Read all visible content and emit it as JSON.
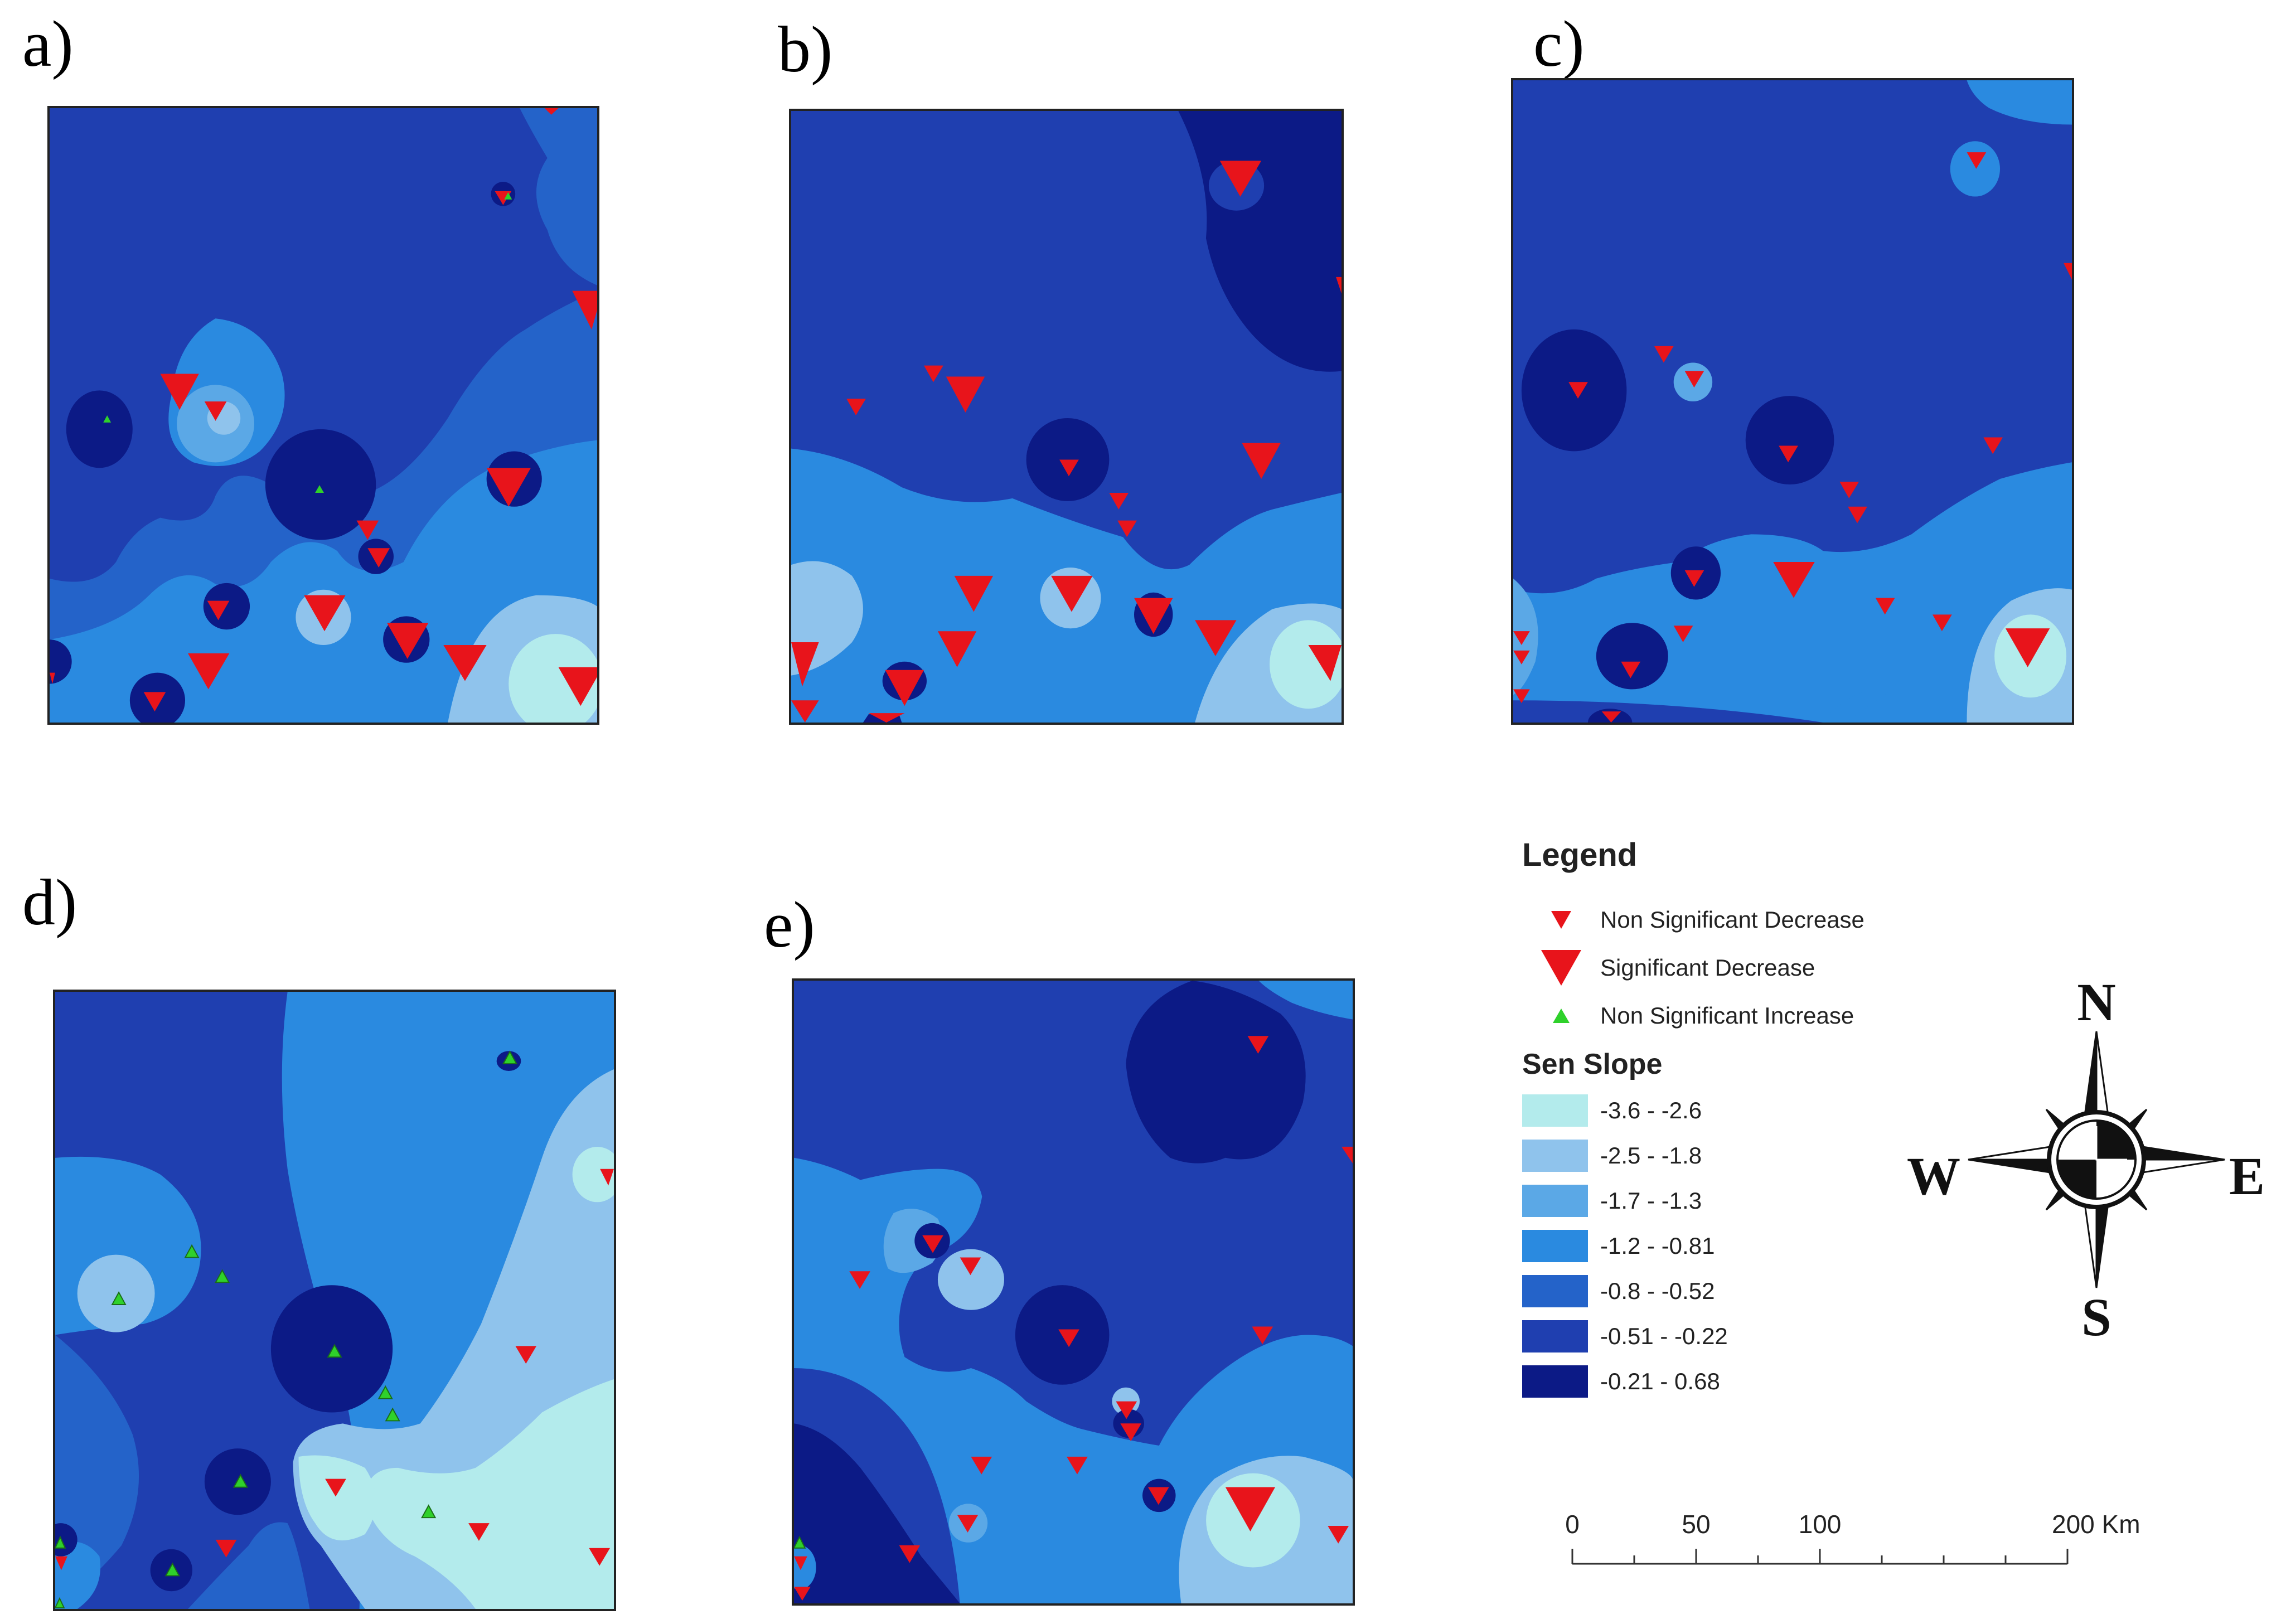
{
  "panels": [
    {
      "label": "a)"
    },
    {
      "label": "b)"
    },
    {
      "label": "c)"
    },
    {
      "label": "d)"
    },
    {
      "label": "e)"
    }
  ],
  "legend": {
    "title": "Legend",
    "symbols": [
      {
        "label": "Non Significant Decrease",
        "icon": "small-red-down-triangle-icon",
        "color": "#e8141b"
      },
      {
        "label": "Significant Decrease",
        "icon": "large-red-down-triangle-icon",
        "color": "#e8141b"
      },
      {
        "label": "Non Significant Increase",
        "icon": "green-up-triangle-icon",
        "color": "#2fd12b"
      }
    ],
    "sen_slope_title": "Sen Slope",
    "classes": [
      {
        "label": "-3.6 - -2.6",
        "color": "#b3ebec"
      },
      {
        "label": "-2.5 - -1.8",
        "color": "#8fc3ec"
      },
      {
        "label": "-1.7 - -1.3",
        "color": "#5ba8e6"
      },
      {
        "label": "-1.2 - -0.81",
        "color": "#2a8ae0"
      },
      {
        "label": "-0.8 - -0.52",
        "color": "#2463c9"
      },
      {
        "label": "-0.51 - -0.22",
        "color": "#1f3fb0"
      },
      {
        "label": "-0.21 - 0.68",
        "color": "#0c1a86"
      }
    ]
  },
  "compass": {
    "north": "N",
    "south": "S",
    "east": "E",
    "west": "W"
  },
  "scale": {
    "ticks": [
      "0",
      "50",
      "100",
      "200 Km"
    ]
  }
}
